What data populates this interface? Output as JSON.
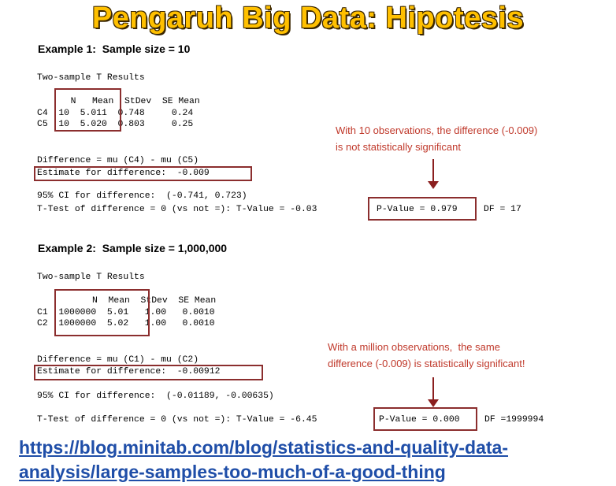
{
  "title": "Pengaruh Big Data: Hipotesis",
  "example1": {
    "heading": "Example 1:  Sample size = 10",
    "results_title": "Two-sample T Results",
    "header": "  N   Mean  StDev  SE Mean",
    "rows": [
      "C4  10  5.011  0.748     0.24",
      "C5  10  5.020  0.803     0.25"
    ],
    "difference": "Difference = mu (C4) - mu (C5)",
    "estimate": "Estimate for difference:  -0.009",
    "ci": "95% CI for difference:  (-0.741, 0.723)",
    "ttest": "T-Test of difference = 0 (vs not =): T-Value = -0.03",
    "pvalue": "P-Value = 0.979",
    "df": "DF = 17",
    "note": "With 10 observations, the difference (-0.009)\nis not statistically significant"
  },
  "example2": {
    "heading": "Example 2:  Sample size = 1,000,000",
    "results_title": "Two-sample T Results",
    "header": "      N  Mean  StDev  SE Mean",
    "rows": [
      "C1  1000000  5.01   1.00   0.0010",
      "C2  1000000  5.02   1.00   0.0010"
    ],
    "difference": "Difference = mu (C1) - mu (C2)",
    "estimate": "Estimate for difference:  -0.00912",
    "ci": "95% CI for difference:  (-0.01189, -0.00635)",
    "ttest": "T-Test of difference = 0 (vs not =): T-Value = -6.45",
    "pvalue": "P-Value = 0.000",
    "df": "DF =1999994",
    "note": "With a million observations,  the same\ndifference (-0.009) is statistically significant!"
  },
  "link": {
    "line1": "https://blog.minitab.com/blog/statistics-and-quality-data-",
    "line2": "analysis/large-samples-too-much-of-a-good-thing"
  },
  "colors": {
    "title": "#FFC000",
    "box_border": "#8b2e2e",
    "note_text": "#c0392b",
    "link": "#1f4ea8"
  }
}
